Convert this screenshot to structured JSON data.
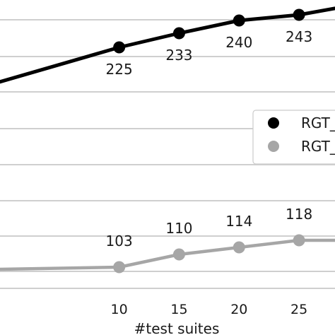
{
  "chart_data": {
    "type": "line",
    "xlabel": "#test suites",
    "x_ticks": [
      "10",
      "15",
      "20",
      "25"
    ],
    "xlim": [
      0,
      28
    ],
    "ylim": [
      70,
      250
    ],
    "grid": "horizontal",
    "legend_position": "right",
    "series": [
      {
        "name": "RGT_",
        "color": "#000000",
        "x": [
          0,
          10,
          15,
          20,
          25,
          28
        ],
        "values": [
          210,
          225,
          233,
          240,
          243,
          247
        ],
        "labels": [
          "",
          "225",
          "233",
          "240",
          "243",
          ""
        ]
      },
      {
        "name": "RGT_",
        "color": "#a6a6a6",
        "x": [
          0,
          10,
          15,
          20,
          25,
          28
        ],
        "values": [
          101,
          103,
          110,
          114,
          118,
          118
        ],
        "labels": [
          "",
          "103",
          "110",
          "114",
          "118",
          ""
        ]
      }
    ]
  }
}
